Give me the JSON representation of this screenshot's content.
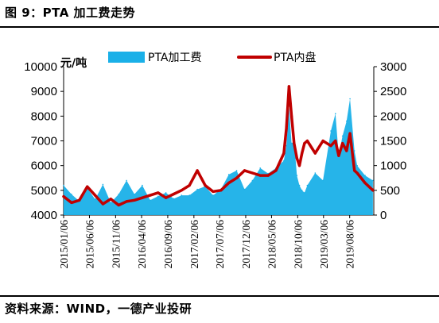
{
  "figure_title": "图 9：PTA 加工费走势",
  "source_note": "资料来源：WIND，一德产业投研",
  "chart_data": {
    "type": "area+line",
    "title": "",
    "unit_label": "元/吨",
    "left_axis": {
      "ylim": [
        4000,
        10000
      ],
      "ticks": [
        "4000",
        "5000",
        "6000",
        "7000",
        "8000",
        "9000",
        "10000"
      ]
    },
    "right_axis": {
      "ylim": [
        0,
        3000
      ],
      "ticks": [
        "0",
        "500",
        "1000",
        "1500",
        "2000",
        "2500",
        "3000"
      ]
    },
    "x_tick_labels": [
      "2015/01/06",
      "2015/06/06",
      "2015/11/06",
      "2016/04/06",
      "2016/09/06",
      "2017/02/06",
      "2017/07/06",
      "2017/12/06",
      "2018/05/06",
      "2018/10/06",
      "2019/03/06",
      "2019/08/06"
    ],
    "legend_position": "top",
    "series": [
      {
        "name": "PTA加工费",
        "type": "area",
        "axis": "right",
        "color": "#1ab0e8",
        "x": [
          "2015/01/06",
          "2015/02/21",
          "2015/04/08",
          "2015/05/24",
          "2015/07/09",
          "2015/08/24",
          "2015/10/09",
          "2015/11/24",
          "2016/01/09",
          "2016/02/24",
          "2016/04/10",
          "2016/05/26",
          "2016/07/11",
          "2016/08/26",
          "2016/10/11",
          "2016/11/26",
          "2017/01/11",
          "2017/02/26",
          "2017/04/13",
          "2017/05/29",
          "2017/07/14",
          "2017/08/29",
          "2017/10/14",
          "2017/11/29",
          "2018/01/14",
          "2018/03/01",
          "2018/04/16",
          "2018/06/01",
          "2018/07/17",
          "2018/08/01",
          "2018/08/16",
          "2018/08/31",
          "2018/09/15",
          "2018/10/01",
          "2018/10/16",
          "2018/10/31",
          "2018/11/15",
          "2018/12/01",
          "2019/01/16",
          "2019/03/03",
          "2019/04/18",
          "2019/05/15",
          "2019/06/03",
          "2019/06/25",
          "2019/07/19",
          "2019/08/08",
          "2019/09/03",
          "2019/09/19",
          "2019/11/04",
          "2019/12/20"
        ],
        "values": [
          600,
          420,
          280,
          550,
          320,
          620,
          250,
          420,
          700,
          420,
          600,
          300,
          380,
          450,
          330,
          400,
          400,
          520,
          580,
          400,
          520,
          820,
          900,
          520,
          700,
          950,
          840,
          950,
          1100,
          1400,
          2200,
          1450,
          1500,
          800,
          600,
          500,
          450,
          600,
          850,
          700,
          1700,
          2050,
          1200,
          1600,
          1900,
          2350,
          1300,
          1000,
          800,
          700
        ]
      },
      {
        "name": "PTA内盘",
        "type": "line",
        "axis": "left",
        "color": "#c00000",
        "x": [
          "2015/01/06",
          "2015/02/21",
          "2015/04/08",
          "2015/05/24",
          "2015/07/09",
          "2015/08/24",
          "2015/10/09",
          "2015/11/24",
          "2016/01/09",
          "2016/02/24",
          "2016/04/10",
          "2016/05/26",
          "2016/07/11",
          "2016/08/26",
          "2016/10/11",
          "2016/11/26",
          "2017/01/11",
          "2017/02/26",
          "2017/04/13",
          "2017/05/29",
          "2017/07/14",
          "2017/08/29",
          "2017/10/14",
          "2017/11/29",
          "2018/01/14",
          "2018/03/01",
          "2018/04/16",
          "2018/06/01",
          "2018/07/17",
          "2018/08/01",
          "2018/08/16",
          "2018/08/31",
          "2018/09/15",
          "2018/10/01",
          "2018/10/16",
          "2018/10/31",
          "2018/11/15",
          "2018/12/01",
          "2019/01/16",
          "2019/03/03",
          "2019/04/18",
          "2019/05/15",
          "2019/06/03",
          "2019/06/25",
          "2019/07/19",
          "2019/08/08",
          "2019/09/03",
          "2019/09/19",
          "2019/11/04",
          "2019/12/20"
        ],
        "values": [
          4750,
          4500,
          4600,
          5150,
          4800,
          4450,
          4650,
          4400,
          4550,
          4600,
          4700,
          4800,
          4900,
          4700,
          4850,
          5000,
          5200,
          5800,
          5200,
          4950,
          5000,
          5300,
          5500,
          5800,
          5700,
          5600,
          5600,
          5800,
          6500,
          7500,
          9200,
          8000,
          6900,
          6300,
          6000,
          6500,
          6900,
          7000,
          6500,
          7000,
          6800,
          7000,
          6400,
          6900,
          6600,
          7300,
          5800,
          5700,
          5300,
          5000
        ]
      }
    ]
  }
}
